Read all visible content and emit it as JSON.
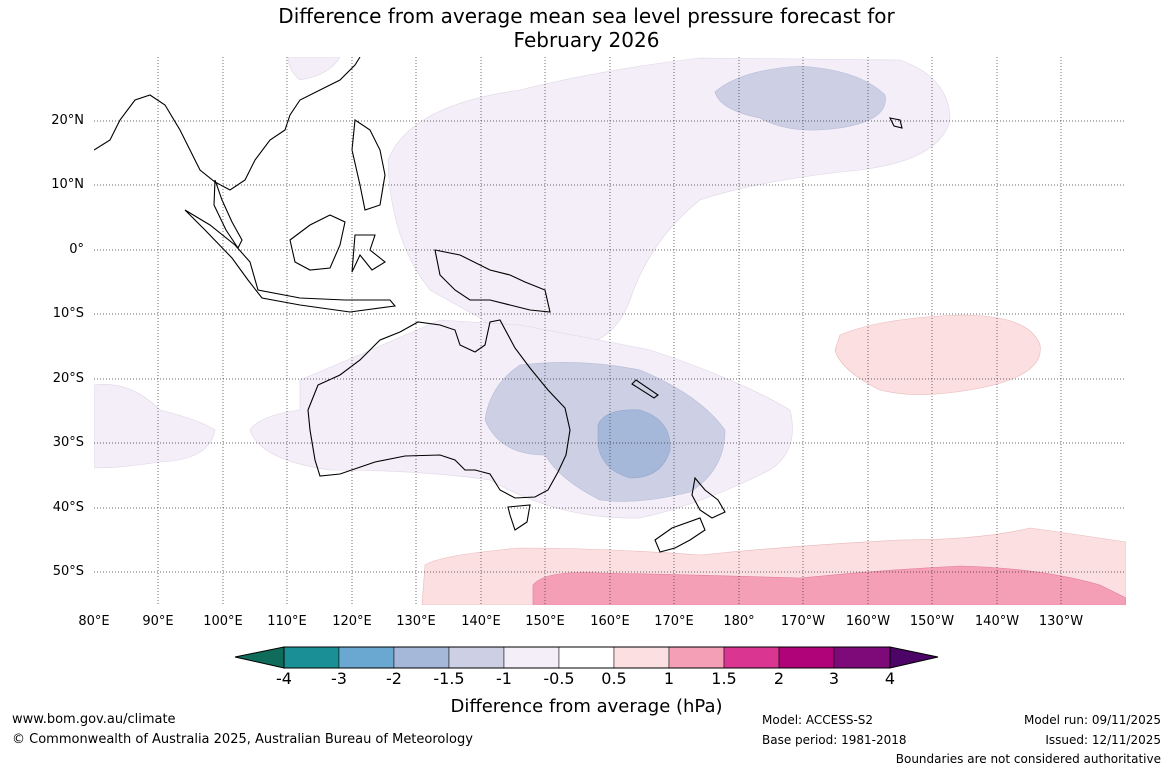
{
  "title": {
    "line1": "Difference from average mean sea level pressure forecast for",
    "line2": "February 2026"
  },
  "map": {
    "lat_labels": [
      "20°N",
      "10°N",
      "0°",
      "10°S",
      "20°S",
      "30°S",
      "40°S",
      "50°S"
    ],
    "lon_labels": [
      "80°E",
      "90°E",
      "100°E",
      "110°E",
      "120°E",
      "130°E",
      "140°E",
      "150°E",
      "160°E",
      "170°E",
      "180°",
      "170°W",
      "160°W",
      "150°W",
      "140°W",
      "130°W"
    ],
    "anomaly_regions": [
      {
        "name": "tropical-west-pacific-negative",
        "category": "-1 to -0.5"
      },
      {
        "name": "hawaii-negative",
        "category": "-1.5 to -1"
      },
      {
        "name": "australia-tasman-negative",
        "category": "-1.5 to -1"
      },
      {
        "name": "tasman-core-negative",
        "category": "-2 to -1.5"
      },
      {
        "name": "south-pacific-positive",
        "category": "0.5 to 1"
      },
      {
        "name": "southern-ocean-positive",
        "category": "0.5 to 1"
      },
      {
        "name": "southern-ocean-core-positive",
        "category": "1 to 1.5"
      }
    ]
  },
  "colorbar": {
    "ticks": [
      "-4",
      "-3",
      "-2",
      "-1.5",
      "-1",
      "-0.5",
      "0.5",
      "1",
      "1.5",
      "2",
      "3",
      "4"
    ],
    "colors": [
      "#0f6b5a",
      "#1a8f96",
      "#6aa8d1",
      "#a6b8da",
      "#cdd0e4",
      "#f3eef7",
      "#ffffff",
      "#fcdfe0",
      "#f59fb7",
      "#d93591",
      "#b0037a",
      "#7d0a78",
      "#4c0466"
    ],
    "label": "Difference from average (hPa)"
  },
  "footer": {
    "website": "www.bom.gov.au/climate",
    "copyright": "© Commonwealth of Australia 2025, Australian Bureau of Meteorology",
    "model": "Model: ACCESS-S2",
    "base_period": "Base period: 1981-2018",
    "model_run": "Model run: 09/11/2025",
    "issued": "Issued: 12/11/2025",
    "disclaimer": "Boundaries are not considered authoritative"
  }
}
